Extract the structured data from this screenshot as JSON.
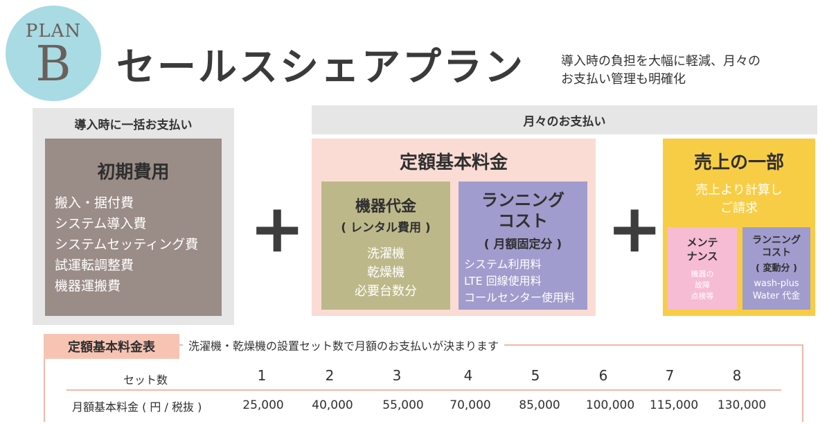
{
  "badge": {
    "plan": "PLAN",
    "letter": "B"
  },
  "title": "セールスシェアプラン",
  "subtitle": [
    "導入時の負担を大幅に軽減、月々の",
    "お支払い管理も明確化"
  ],
  "left": {
    "header": "導入時に一括お支払い",
    "box_title": "初期費用",
    "items": [
      "搬入・据付費",
      "システム導入費",
      "システムセッティング費",
      "試運転調整費",
      "機器運搬費"
    ]
  },
  "plus_symbol": "+",
  "monthly": {
    "header": "月々のお支払い",
    "fixed": {
      "title": "定額基本料金",
      "equipment": {
        "title": "機器代金",
        "sub": "( レンタル費用 )",
        "items": [
          "洗濯機",
          "乾燥機",
          "必要台数分"
        ]
      },
      "running": {
        "title_lines": [
          "ランニング",
          "コスト"
        ],
        "sub": "( 月額固定分 )",
        "items": [
          "システム利用料",
          "LTE 回線使用料",
          "コールセンター使用料"
        ]
      }
    },
    "sales": {
      "title": "売上の一部",
      "sub_lines": [
        "売上より計算し",
        "ご請求"
      ],
      "maintenance": {
        "title_lines": [
          "メンテ",
          "ナンス"
        ],
        "items": [
          "機器の",
          "故障",
          "点検等"
        ]
      },
      "running": {
        "title_lines": [
          "ランニング",
          "コスト"
        ],
        "sub": "( 変動分 )",
        "items": [
          "wash-plus",
          "Water 代金"
        ]
      }
    }
  },
  "table": {
    "tag": "定額基本料金表",
    "note": "洗濯機・乾燥機の設置セット数で月額のお支払いが決まります",
    "row1_label": "セット数",
    "row2_label": "月額基本料金 ( 円 / 税抜 )",
    "sets": [
      "1",
      "2",
      "3",
      "4",
      "5",
      "6",
      "7",
      "8"
    ],
    "prices": [
      "25,000",
      "40,000",
      "55,000",
      "70,000",
      "85,000",
      "100,000",
      "115,000",
      "130,000"
    ]
  },
  "colors": {
    "badge": "#a8dbe3",
    "gray": "#e6e6e6",
    "initial": "#9a8c87",
    "fixed_bg": "#fadcd4",
    "equipment": "#bdb88a",
    "running": "#a09ccd",
    "sales": "#f8cd46",
    "maintenance": "#f6bcd4",
    "table_accent": "#f7c4b4"
  }
}
